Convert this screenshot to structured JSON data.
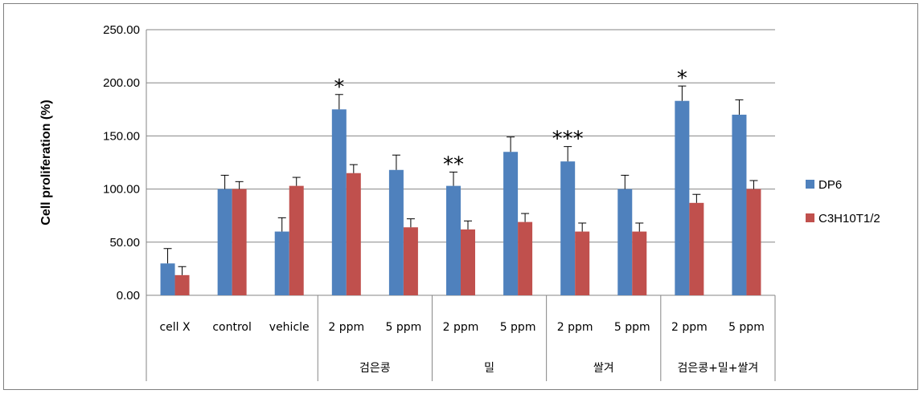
{
  "chart_data": {
    "type": "bar",
    "ylabel": "Cell proliferation  (%)",
    "ylim": [
      0,
      250
    ],
    "yticks": [
      "0.00",
      "50.00",
      "100.00",
      "150.00",
      "200.00",
      "250.00"
    ],
    "categories": [
      "cell X",
      "control",
      "vehicle",
      "2 ppm",
      "5 ppm",
      "2 ppm",
      "5 ppm",
      "2 ppm",
      "5 ppm",
      "2 ppm",
      "5 ppm"
    ],
    "groups": [
      {
        "label": "검은콩",
        "start": 3,
        "end": 4
      },
      {
        "label": "밀",
        "start": 5,
        "end": 6
      },
      {
        "label": "쌀겨",
        "start": 7,
        "end": 8
      },
      {
        "label": "검은콩+밀+쌀겨",
        "start": 9,
        "end": 10
      }
    ],
    "series": [
      {
        "name": "DP6",
        "color": "#4f81bd",
        "values": [
          30,
          100,
          60,
          175,
          118,
          103,
          135,
          126,
          100,
          183,
          170
        ],
        "errors": [
          14,
          13,
          13,
          14,
          14,
          13,
          14,
          14,
          13,
          14,
          14
        ]
      },
      {
        "name": "C3H10T1/2",
        "color": "#c0504d",
        "values": [
          19,
          100,
          103,
          115,
          64,
          62,
          69,
          60,
          60,
          87,
          100
        ],
        "errors": [
          8,
          7,
          8,
          8,
          8,
          8,
          8,
          8,
          8,
          8,
          8
        ]
      }
    ],
    "annotations": [
      {
        "index": 3,
        "text": "*"
      },
      {
        "index": 5,
        "text": "**"
      },
      {
        "index": 7,
        "text": "***"
      },
      {
        "index": 9,
        "text": "*"
      }
    ],
    "grid": true,
    "legend": "right"
  }
}
